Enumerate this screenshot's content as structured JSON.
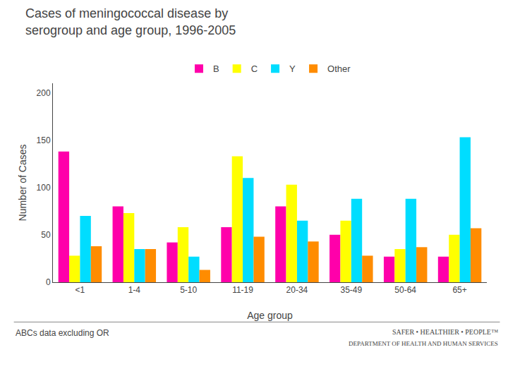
{
  "chart_data": {
    "type": "bar",
    "title": "Cases of meningococcal disease by",
    "subtitle": "serogroup and age group, 1996-2005",
    "xlabel": "Age group",
    "ylabel": "Number of Cases",
    "categories": [
      "<1",
      "1-4",
      "5-10",
      "11-19",
      "20-34",
      "35-49",
      "50-64",
      "65+"
    ],
    "series": [
      {
        "name": "B",
        "color": "#FF00AA",
        "values": [
          138,
          80,
          42,
          58,
          80,
          50,
          27,
          27
        ]
      },
      {
        "name": "C",
        "color": "#FFFF00",
        "values": [
          28,
          73,
          58,
          133,
          103,
          65,
          35,
          50
        ]
      },
      {
        "name": "Y",
        "color": "#00DDFF",
        "values": [
          70,
          35,
          27,
          110,
          65,
          88,
          88,
          153
        ]
      },
      {
        "name": "Other",
        "color": "#FF8C00",
        "values": [
          38,
          35,
          13,
          48,
          43,
          28,
          37,
          57
        ]
      }
    ],
    "ylim": [
      0,
      210
    ],
    "yticks": [
      0,
      50,
      100,
      150,
      200
    ],
    "grid": false,
    "legend": "top",
    "annotations": [
      "ABCs data excluding OR",
      "SAFER • HEALTHIER • PEOPLE™",
      "DEPARTMENT OF HEALTH AND HUMAN SERVICES"
    ]
  }
}
